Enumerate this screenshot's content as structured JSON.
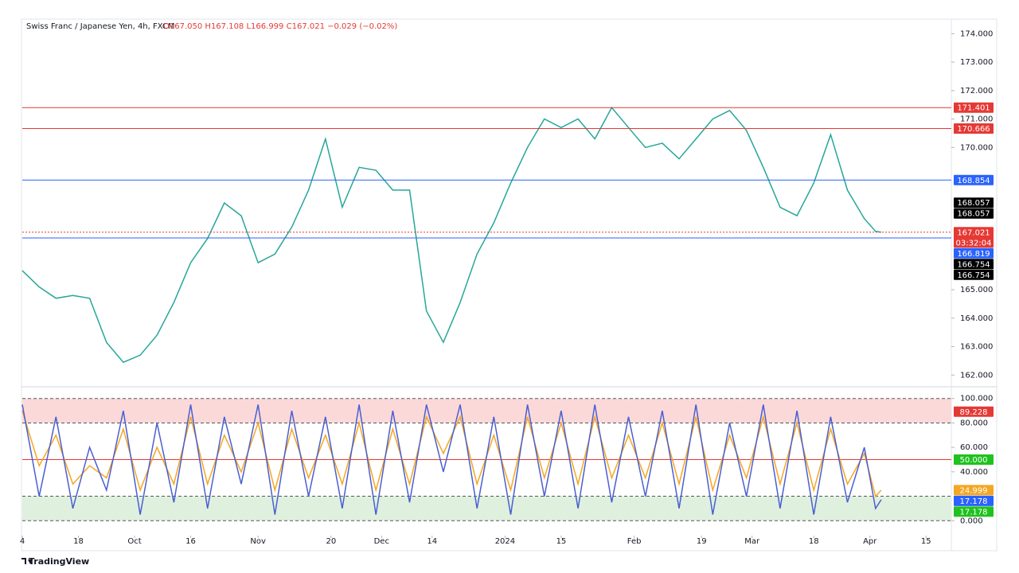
{
  "header": {
    "title": "Swiss Franc / Japanese Yen, 4h, FXCM",
    "ohlc": [
      "O167.050",
      "H167.108",
      "L166.999",
      "C167.021",
      "−0.029 (−0.02%)"
    ]
  },
  "footer": {
    "brand": "TradingView"
  },
  "chart_data": [
    {
      "type": "line",
      "x": [
        0,
        3,
        6,
        9,
        12,
        15,
        18,
        21,
        24,
        27,
        30,
        33,
        36,
        39,
        42,
        45,
        48,
        51,
        54,
        57,
        60,
        63,
        66,
        69,
        72,
        75,
        78,
        81,
        84,
        87,
        90,
        93,
        96,
        99,
        102,
        105,
        108,
        111,
        114,
        117,
        120,
        123,
        126,
        129,
        132,
        135,
        138,
        141,
        144,
        147,
        150,
        152,
        153
      ],
      "series": [
        {
          "color": "#26a69a",
          "values": [
            165.67,
            165.1,
            164.7,
            164.8,
            164.7,
            163.15,
            162.45,
            162.7,
            163.4,
            164.55,
            165.95,
            166.8,
            168.05,
            167.6,
            165.95,
            166.25,
            167.2,
            168.5,
            170.3,
            167.9,
            169.3,
            169.2,
            168.5,
            168.5,
            164.25,
            163.15,
            164.55,
            166.25,
            167.35,
            168.75,
            170.0,
            171.0,
            170.7,
            171.0,
            170.3,
            171.4,
            170.7,
            170.0,
            170.15,
            169.6,
            170.3,
            171.0,
            171.3,
            170.6,
            169.3,
            167.9,
            167.6,
            168.75,
            170.45,
            168.5,
            167.5,
            167.05,
            167.021
          ]
        }
      ],
      "xlim": [
        0,
        165.5
      ],
      "ylim": [
        161.7,
        174.4
      ],
      "yticks": [
        {
          "value": 162,
          "label": "162.000"
        },
        {
          "value": 163,
          "label": "163.000"
        },
        {
          "value": 164,
          "label": "164.000"
        },
        {
          "value": 165,
          "label": "165.000"
        },
        {
          "value": 170,
          "label": "170.000"
        },
        {
          "value": 171,
          "label": "171.000"
        },
        {
          "value": 172,
          "label": "172.000"
        },
        {
          "value": 173,
          "label": "173.000"
        },
        {
          "value": 174,
          "label": "174.000"
        }
      ],
      "tags": [
        {
          "value": 171.401,
          "label": "171.401",
          "color": "#e53935",
          "line": "solid"
        },
        {
          "value": 170.666,
          "label": "170.666",
          "color": "#e53935",
          "line": "solid"
        },
        {
          "value": 168.854,
          "label": "168.854",
          "color": "#2962ff",
          "line": "solid"
        },
        {
          "value": 168.057,
          "label": "168.057",
          "color": "#000000"
        },
        {
          "value": 168.057,
          "label": "168.057",
          "color": "#000000"
        },
        {
          "value": 167.021,
          "label": "167.021",
          "color": "#e53935",
          "line": "dotted",
          "countdown": "03:32:04"
        },
        {
          "value": 166.819,
          "label": "166.819",
          "color": "#2962ff",
          "line": "solid"
        },
        {
          "value": 166.754,
          "label": "166.754",
          "color": "#000000"
        },
        {
          "value": 166.754,
          "label": "166.754",
          "color": "#000000"
        }
      ]
    },
    {
      "type": "line",
      "x": [
        0,
        3,
        6,
        9,
        12,
        15,
        18,
        21,
        24,
        27,
        30,
        33,
        36,
        39,
        42,
        45,
        48,
        51,
        54,
        57,
        60,
        63,
        66,
        69,
        72,
        75,
        78,
        81,
        84,
        87,
        90,
        93,
        96,
        99,
        102,
        105,
        108,
        111,
        114,
        117,
        120,
        123,
        126,
        129,
        132,
        135,
        138,
        141,
        144,
        147,
        150,
        152,
        153
      ],
      "series": [
        {
          "color": "#f5a623",
          "values": [
            90,
            45,
            70,
            30,
            45,
            35,
            75,
            25,
            60,
            30,
            85,
            30,
            70,
            40,
            80,
            25,
            75,
            35,
            70,
            30,
            80,
            25,
            75,
            30,
            85,
            55,
            85,
            30,
            70,
            25,
            85,
            35,
            80,
            30,
            85,
            35,
            70,
            35,
            80,
            30,
            85,
            25,
            70,
            35,
            85,
            30,
            80,
            25,
            75,
            30,
            55,
            20,
            24.999
          ]
        },
        {
          "color": "#4a5fd0",
          "values": [
            95,
            20,
            85,
            10,
            60,
            25,
            90,
            5,
            80,
            15,
            95,
            10,
            85,
            30,
            95,
            5,
            90,
            20,
            85,
            10,
            95,
            5,
            90,
            15,
            95,
            40,
            95,
            10,
            85,
            5,
            95,
            20,
            90,
            10,
            95,
            15,
            85,
            20,
            90,
            10,
            95,
            5,
            80,
            20,
            95,
            10,
            90,
            5,
            85,
            15,
            60,
            10,
            17.178
          ]
        }
      ],
      "xlim": [
        0,
        165.5
      ],
      "ylim": [
        -7,
        107
      ],
      "yticks": [
        {
          "value": 0,
          "label": "0.000"
        },
        {
          "value": 40,
          "label": "40.000"
        },
        {
          "value": 60,
          "label": "60.000"
        },
        {
          "value": 80,
          "label": "80.000"
        },
        {
          "value": 100,
          "label": "100.000"
        }
      ],
      "bands": [
        {
          "from": 80,
          "to": 100,
          "color": "#fbd9d9"
        },
        {
          "from": 0,
          "to": 20,
          "color": "#dff0df"
        }
      ],
      "levels": [
        {
          "value": 100,
          "color": "#555555",
          "line": "dashed"
        },
        {
          "value": 80,
          "color": "#555555",
          "line": "dashed"
        },
        {
          "value": 50,
          "color": "#e53935",
          "line": "solid"
        },
        {
          "value": 20,
          "color": "#555555",
          "line": "dashed"
        },
        {
          "value": 0,
          "color": "#555555",
          "line": "dashed"
        }
      ],
      "tags": [
        {
          "value": 89.228,
          "label": "89.228",
          "color": "#e53935"
        },
        {
          "value": 50,
          "label": "50.000",
          "color": "#1fc21f"
        },
        {
          "value": 24.999,
          "label": "24.999",
          "color": "#f5a623"
        },
        {
          "value": 17.178,
          "label": "17.178",
          "color": "#2962ff"
        },
        {
          "value": 17.178,
          "label": "17.178",
          "color": "#1fc21f"
        }
      ],
      "xticks": [
        {
          "value": 0,
          "label": "4"
        },
        {
          "value": 10,
          "label": "18"
        },
        {
          "value": 20,
          "label": "Oct"
        },
        {
          "value": 30,
          "label": "16"
        },
        {
          "value": 42,
          "label": "Nov"
        },
        {
          "value": 55,
          "label": "20"
        },
        {
          "value": 64,
          "label": "Dec"
        },
        {
          "value": 73,
          "label": "14"
        },
        {
          "value": 86,
          "label": "2024"
        },
        {
          "value": 96,
          "label": "15"
        },
        {
          "value": 109,
          "label": "Feb"
        },
        {
          "value": 121,
          "label": "19"
        },
        {
          "value": 130,
          "label": "Mar"
        },
        {
          "value": 141,
          "label": "18"
        },
        {
          "value": 151,
          "label": "Apr"
        },
        {
          "value": 161,
          "label": "15"
        }
      ]
    }
  ]
}
